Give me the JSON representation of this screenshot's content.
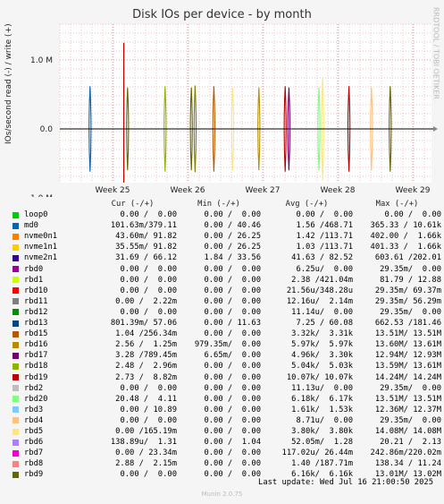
{
  "title": "Disk IOs per device - by month",
  "vertical_label": "IOs/second read (-) / write (+)",
  "side_text": "RRDTOOL / TOBI OETIKER",
  "y_ticks": [
    "1.0 M",
    "0.0",
    "-1.0 M"
  ],
  "x_ticks": [
    "Week 25",
    "Week 26",
    "Week 27",
    "Week 28",
    "Week 29"
  ],
  "legend_headers": [
    "Cur (-/+)",
    "Min (-/+)",
    "Avg (-/+)",
    "Max (-/+)"
  ],
  "devices": [
    {
      "name": "loop0",
      "color": "#00cc00",
      "cur": "0.00 /  0.00",
      "min": "0.00 /  0.00",
      "avg": "0.00 /  0.00",
      "max": "0.00 /  0.00"
    },
    {
      "name": "md0",
      "color": "#0066b3",
      "cur": "101.63m/379.11",
      "min": "0.00 / 40.46",
      "avg": "1.56 /468.71",
      "max": "365.33 / 10.61k"
    },
    {
      "name": "nvme0n1",
      "color": "#ff8000",
      "cur": "43.60m/ 91.82",
      "min": "0.00 / 26.25",
      "avg": "1.42 /113.71",
      "max": "402.00 /  1.66k"
    },
    {
      "name": "nvme1n1",
      "color": "#ffcc00",
      "cur": "35.55m/ 91.82",
      "min": "0.00 / 26.25",
      "avg": "1.03 /113.71",
      "max": "401.33 /  1.66k"
    },
    {
      "name": "nvme2n1",
      "color": "#330099",
      "cur": "31.69 / 66.12",
      "min": "1.84 / 33.56",
      "avg": "41.63 / 82.52",
      "max": "603.61 /202.01"
    },
    {
      "name": "rbd0",
      "color": "#990099",
      "cur": "0.00 /  0.00",
      "min": "0.00 /  0.00",
      "avg": "6.25u/  0.00",
      "max": "29.35m/  0.00"
    },
    {
      "name": "rbd1",
      "color": "#ccff00",
      "cur": "0.00 /  0.00",
      "min": "0.00 /  0.00",
      "avg": "2.38 /421.04m",
      "max": "81.79 / 12.88"
    },
    {
      "name": "rbd10",
      "color": "#ff0000",
      "cur": "0.00 /  0.00",
      "min": "0.00 /  0.00",
      "avg": "21.56u/348.28u",
      "max": "29.35m/ 69.37m"
    },
    {
      "name": "rbd11",
      "color": "#808080",
      "cur": "0.00 /  2.22m",
      "min": "0.00 /  0.00",
      "avg": "12.16u/  2.14m",
      "max": "29.35m/ 56.29m"
    },
    {
      "name": "rbd12",
      "color": "#008f00",
      "cur": "0.00 /  0.00",
      "min": "0.00 /  0.00",
      "avg": "11.14u/  0.00",
      "max": "29.35m/  0.00"
    },
    {
      "name": "rbd13",
      "color": "#00487d",
      "cur": "801.39m/ 57.06",
      "min": "0.00 / 11.63",
      "avg": "7.25 / 60.08",
      "max": "662.53 /181.46"
    },
    {
      "name": "rbd15",
      "color": "#b35a00",
      "cur": "1.04 /256.34m",
      "min": "0.00 /  0.00",
      "avg": "3.32k/  3.31k",
      "max": "13.51M/ 13.51M"
    },
    {
      "name": "rbd16",
      "color": "#b38f00",
      "cur": "2.56 /  1.25m",
      "min": "979.35m/  0.00",
      "avg": "5.97k/  5.97k",
      "max": "13.60M/ 13.61M"
    },
    {
      "name": "rbd17",
      "color": "#6b006b",
      "cur": "3.28 /789.45m",
      "min": "6.65m/  0.00",
      "avg": "4.96k/  3.30k",
      "max": "12.94M/ 12.93M"
    },
    {
      "name": "rbd18",
      "color": "#8fb300",
      "cur": "2.48 /  2.96m",
      "min": "0.00 /  0.00",
      "avg": "5.04k/  5.03k",
      "max": "13.59M/ 13.61M"
    },
    {
      "name": "rbd19",
      "color": "#b30000",
      "cur": "2.73 /  8.82m",
      "min": "0.00 /  0.00",
      "avg": "10.07k/ 10.07k",
      "max": "14.24M/ 14.24M"
    },
    {
      "name": "rbd2",
      "color": "#bebebe",
      "cur": "0.00 /  0.00",
      "min": "0.00 /  0.00",
      "avg": "11.13u/  0.00",
      "max": "29.35m/  0.00"
    },
    {
      "name": "rbd20",
      "color": "#80ff80",
      "cur": "20.48 /  4.11",
      "min": "0.00 /  0.00",
      "avg": "6.18k/  6.17k",
      "max": "13.51M/ 13.51M"
    },
    {
      "name": "rbd3",
      "color": "#80c9ff",
      "cur": "0.00 / 10.89",
      "min": "0.00 /  0.00",
      "avg": "1.61k/  1.53k",
      "max": "12.36M/ 12.37M"
    },
    {
      "name": "rbd4",
      "color": "#ffc080",
      "cur": "0.00 /  0.00",
      "min": "0.00 /  0.00",
      "avg": "8.71u/  0.00",
      "max": "29.35m/  0.00"
    },
    {
      "name": "rbd5",
      "color": "#ffe680",
      "cur": "0.00 /165.19m",
      "min": "0.00 /  0.00",
      "avg": "3.80k/  3.80k",
      "max": "14.08M/ 14.08M"
    },
    {
      "name": "rbd6",
      "color": "#aa80ff",
      "cur": "138.89u/  1.31",
      "min": "0.00 /  1.04",
      "avg": "52.05m/  1.28",
      "max": "20.21 /  2.13"
    },
    {
      "name": "rbd7",
      "color": "#ee00cc",
      "cur": "0.00 / 23.34m",
      "min": "0.00 /  0.00",
      "avg": "117.02u/ 26.44m",
      "max": "242.86m/220.02m"
    },
    {
      "name": "rbd8",
      "color": "#ff8080",
      "cur": "2.88 /  2.15m",
      "min": "0.00 /  0.00",
      "avg": "1.40 /187.71m",
      "max": "138.34 / 11.24"
    },
    {
      "name": "rbd9",
      "color": "#666600",
      "cur": "0.00 /  0.00",
      "min": "0.00 /  0.00",
      "avg": "6.16k/  6.16k",
      "max": "13.01M/ 13.02M"
    }
  ],
  "chart_data": {
    "type": "line",
    "y_ticks": [
      1000000,
      0,
      -1000000
    ],
    "x_categories": [
      "Week 25",
      "Week 26",
      "Week 27",
      "Week 28",
      "Week 29"
    ],
    "spikes": [
      {
        "x": 24.7,
        "amp": 0.62,
        "color": "#0066b3"
      },
      {
        "x": 25.15,
        "amp": 1.25,
        "color": "#b30000"
      },
      {
        "x": 25.2,
        "amp": 0.6,
        "color": "#666600"
      },
      {
        "x": 25.7,
        "amp": 0.62,
        "color": "#8fb300"
      },
      {
        "x": 26.05,
        "amp": 0.6,
        "color": "#666600"
      },
      {
        "x": 26.1,
        "amp": 0.63,
        "color": "#808000"
      },
      {
        "x": 26.35,
        "amp": 0.62,
        "color": "#b35a00"
      },
      {
        "x": 26.6,
        "amp": 0.6,
        "color": "#ffe680"
      },
      {
        "x": 26.95,
        "amp": 0.6,
        "color": "#b38f00"
      },
      {
        "x": 27.3,
        "amp": 0.62,
        "color": "#b30000"
      },
      {
        "x": 27.35,
        "amp": 0.6,
        "color": "#6b006b"
      },
      {
        "x": 27.75,
        "amp": 0.6,
        "color": "#80ff80"
      },
      {
        "x": 27.8,
        "amp": 0.75,
        "color": "#ffe680"
      },
      {
        "x": 28.15,
        "amp": 0.62,
        "color": "#b30000"
      },
      {
        "x": 28.45,
        "amp": 0.6,
        "color": "#ffc080"
      },
      {
        "x": 28.7,
        "amp": 0.62,
        "color": "#666600"
      }
    ]
  },
  "last_update": "Last update: Wed Jul 16 21:00:50 2025",
  "munin_version": "Munin 2.0.75"
}
